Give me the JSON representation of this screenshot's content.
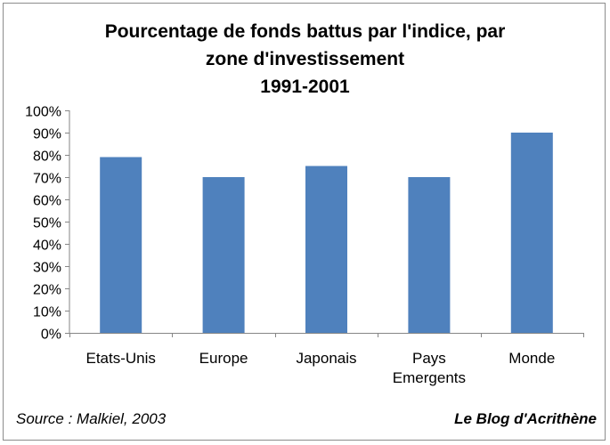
{
  "chart_data": {
    "type": "bar",
    "title_lines": [
      "Pourcentage de fonds battus par l'indice, par",
      "zone d'investissement",
      "1991-2001"
    ],
    "categories": [
      [
        "Etats-Unis"
      ],
      [
        "Europe"
      ],
      [
        "Japonais"
      ],
      [
        "Pays",
        "Emergents"
      ],
      [
        "Monde"
      ]
    ],
    "values": [
      79,
      70,
      75,
      70,
      90
    ],
    "ylim": [
      0,
      100
    ],
    "yticks": [
      "0%",
      "10%",
      "20%",
      "30%",
      "40%",
      "50%",
      "60%",
      "70%",
      "80%",
      "90%",
      "100%"
    ],
    "bar_color": "#4f81bd",
    "grid": false,
    "legend": "none"
  },
  "footer": {
    "source": "Source : Malkiel, 2003",
    "blog": "Le Blog d'Acrithène"
  }
}
